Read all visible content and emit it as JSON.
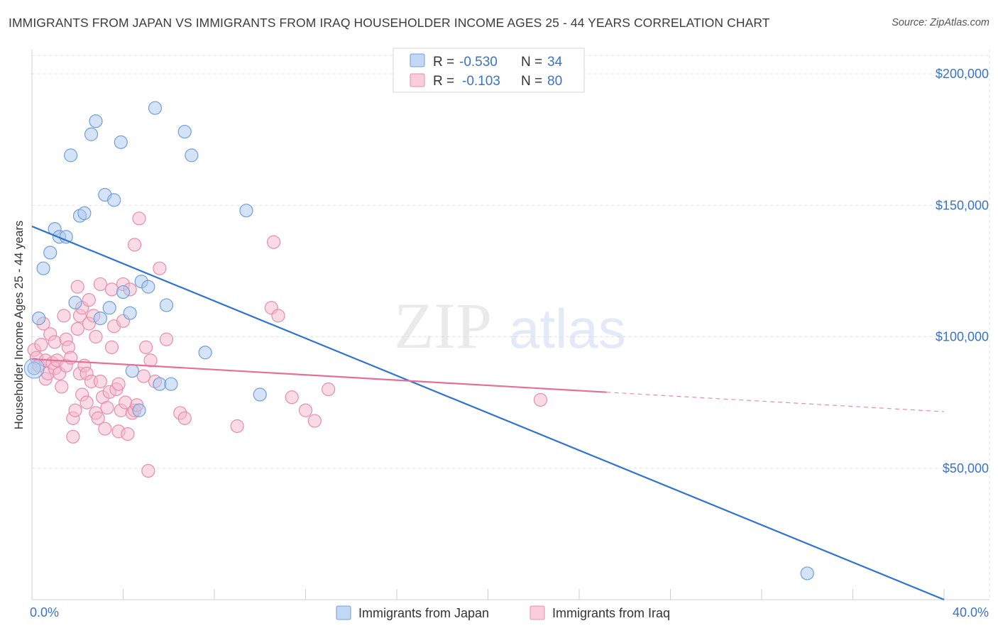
{
  "header": {
    "title": "IMMIGRANTS FROM JAPAN VS IMMIGRANTS FROM IRAQ HOUSEHOLDER INCOME AGES 25 - 44 YEARS CORRELATION CHART",
    "source": "Source: ZipAtlas.com"
  },
  "watermark": {
    "zip": "ZIP",
    "atlas": "atlas"
  },
  "legend": {
    "r_label": "R =",
    "n_label": "N =",
    "entries": [
      {
        "r": "-0.530",
        "n": "34"
      },
      {
        "r": "-0.103",
        "n": "80"
      }
    ]
  },
  "bottom_legend": {
    "japan": "Immigrants from Japan",
    "iraq": "Immigrants from Iraq"
  },
  "colors": {
    "japan_fill": "#a9c8ef",
    "japan_stroke": "#6f9fd8",
    "japan_line": "#2f72d2",
    "iraq_fill": "#f6b8cb",
    "iraq_stroke": "#e58eaa",
    "iraq_line": "#e4709a",
    "axis_label": "#3a73c6"
  },
  "chart_data": {
    "type": "scatter",
    "title": "IMMIGRANTS FROM JAPAN VS IMMIGRANTS FROM IRAQ HOUSEHOLDER INCOME AGES 25 - 44 YEARS CORRELATION CHART",
    "xlabel": "",
    "ylabel": "Householder Income Ages 25 - 44 years",
    "xlim": [
      0,
      40
    ],
    "ylim": [
      0,
      210000
    ],
    "x_tick_labels": [
      "0.0%",
      "40.0%"
    ],
    "y_tick_labels": [
      "$200,000",
      "$150,000",
      "$100,000",
      "$50,000"
    ],
    "y_ticks": [
      200000,
      150000,
      100000,
      50000
    ],
    "series": [
      {
        "name": "Immigrants from Japan",
        "r": -0.53,
        "n": 34,
        "trend": {
          "x0": 0,
          "y0": 142000,
          "x1": 40,
          "y1": 0,
          "solid_until": 40
        },
        "points": [
          [
            0.1,
            88000
          ],
          [
            0.3,
            107000
          ],
          [
            0.5,
            126000
          ],
          [
            0.8,
            132000
          ],
          [
            1.0,
            141000
          ],
          [
            1.2,
            138000
          ],
          [
            1.5,
            138000
          ],
          [
            1.7,
            169000
          ],
          [
            1.9,
            113000
          ],
          [
            2.1,
            146000
          ],
          [
            2.3,
            147000
          ],
          [
            2.6,
            177000
          ],
          [
            2.8,
            182000
          ],
          [
            3.0,
            107000
          ],
          [
            3.2,
            154000
          ],
          [
            3.4,
            111000
          ],
          [
            3.6,
            152000
          ],
          [
            3.9,
            174000
          ],
          [
            4.0,
            117000
          ],
          [
            4.3,
            109000
          ],
          [
            4.4,
            87000
          ],
          [
            4.7,
            72000
          ],
          [
            4.8,
            121000
          ],
          [
            5.1,
            119000
          ],
          [
            5.4,
            187000
          ],
          [
            5.6,
            82000
          ],
          [
            5.9,
            112000
          ],
          [
            6.1,
            82000
          ],
          [
            6.7,
            178000
          ],
          [
            7.0,
            169000
          ],
          [
            7.6,
            94000
          ],
          [
            9.4,
            148000
          ],
          [
            10.0,
            78000
          ],
          [
            34.0,
            10000
          ]
        ]
      },
      {
        "name": "Immigrants from Iraq",
        "r": -0.103,
        "n": 80,
        "trend": {
          "x0": 0,
          "y0": 91500,
          "x1": 40,
          "y1": 71500,
          "solid_until": 25.2
        },
        "points": [
          [
            0.1,
            95000
          ],
          [
            0.2,
            92000
          ],
          [
            0.3,
            89000
          ],
          [
            0.4,
            97000
          ],
          [
            0.5,
            105000
          ],
          [
            0.6,
            84000
          ],
          [
            0.6,
            91000
          ],
          [
            0.7,
            86000
          ],
          [
            0.8,
            101000
          ],
          [
            0.9,
            90000
          ],
          [
            1.0,
            98000
          ],
          [
            1.0,
            88000
          ],
          [
            1.1,
            91000
          ],
          [
            1.2,
            86000
          ],
          [
            1.3,
            81000
          ],
          [
            1.4,
            108000
          ],
          [
            1.5,
            99000
          ],
          [
            1.5,
            89000
          ],
          [
            1.6,
            96000
          ],
          [
            1.7,
            92000
          ],
          [
            1.8,
            62000
          ],
          [
            1.8,
            69000
          ],
          [
            1.9,
            72000
          ],
          [
            2.0,
            119000
          ],
          [
            2.0,
            103000
          ],
          [
            2.1,
            108000
          ],
          [
            2.1,
            86000
          ],
          [
            2.2,
            78000
          ],
          [
            2.2,
            111000
          ],
          [
            2.3,
            89000
          ],
          [
            2.4,
            86000
          ],
          [
            2.4,
            75000
          ],
          [
            2.5,
            114000
          ],
          [
            2.5,
            105000
          ],
          [
            2.6,
            83000
          ],
          [
            2.7,
            108000
          ],
          [
            2.8,
            71000
          ],
          [
            2.8,
            100000
          ],
          [
            2.9,
            69000
          ],
          [
            3.0,
            83000
          ],
          [
            3.0,
            120000
          ],
          [
            3.1,
            77000
          ],
          [
            3.2,
            65000
          ],
          [
            3.3,
            73000
          ],
          [
            3.4,
            79000
          ],
          [
            3.5,
            118000
          ],
          [
            3.5,
            96000
          ],
          [
            3.6,
            104000
          ],
          [
            3.7,
            80000
          ],
          [
            3.8,
            82000
          ],
          [
            3.8,
            64000
          ],
          [
            3.9,
            72000
          ],
          [
            4.0,
            120000
          ],
          [
            4.0,
            106000
          ],
          [
            4.1,
            75000
          ],
          [
            4.2,
            63000
          ],
          [
            4.3,
            118000
          ],
          [
            4.4,
            71000
          ],
          [
            4.5,
            135000
          ],
          [
            4.5,
            72000
          ],
          [
            4.6,
            74000
          ],
          [
            4.7,
            145000
          ],
          [
            4.9,
            85000
          ],
          [
            5.0,
            96000
          ],
          [
            5.2,
            91000
          ],
          [
            5.4,
            83000
          ],
          [
            5.6,
            126000
          ],
          [
            5.9,
            99000
          ],
          [
            6.5,
            71000
          ],
          [
            6.7,
            69000
          ],
          [
            9.0,
            66000
          ],
          [
            10.5,
            111000
          ],
          [
            10.6,
            136000
          ],
          [
            10.8,
            108000
          ],
          [
            11.4,
            77000
          ],
          [
            12.0,
            72000
          ],
          [
            12.4,
            68000
          ],
          [
            13.0,
            80000
          ],
          [
            22.3,
            76000
          ],
          [
            5.1,
            49000
          ]
        ]
      }
    ]
  }
}
